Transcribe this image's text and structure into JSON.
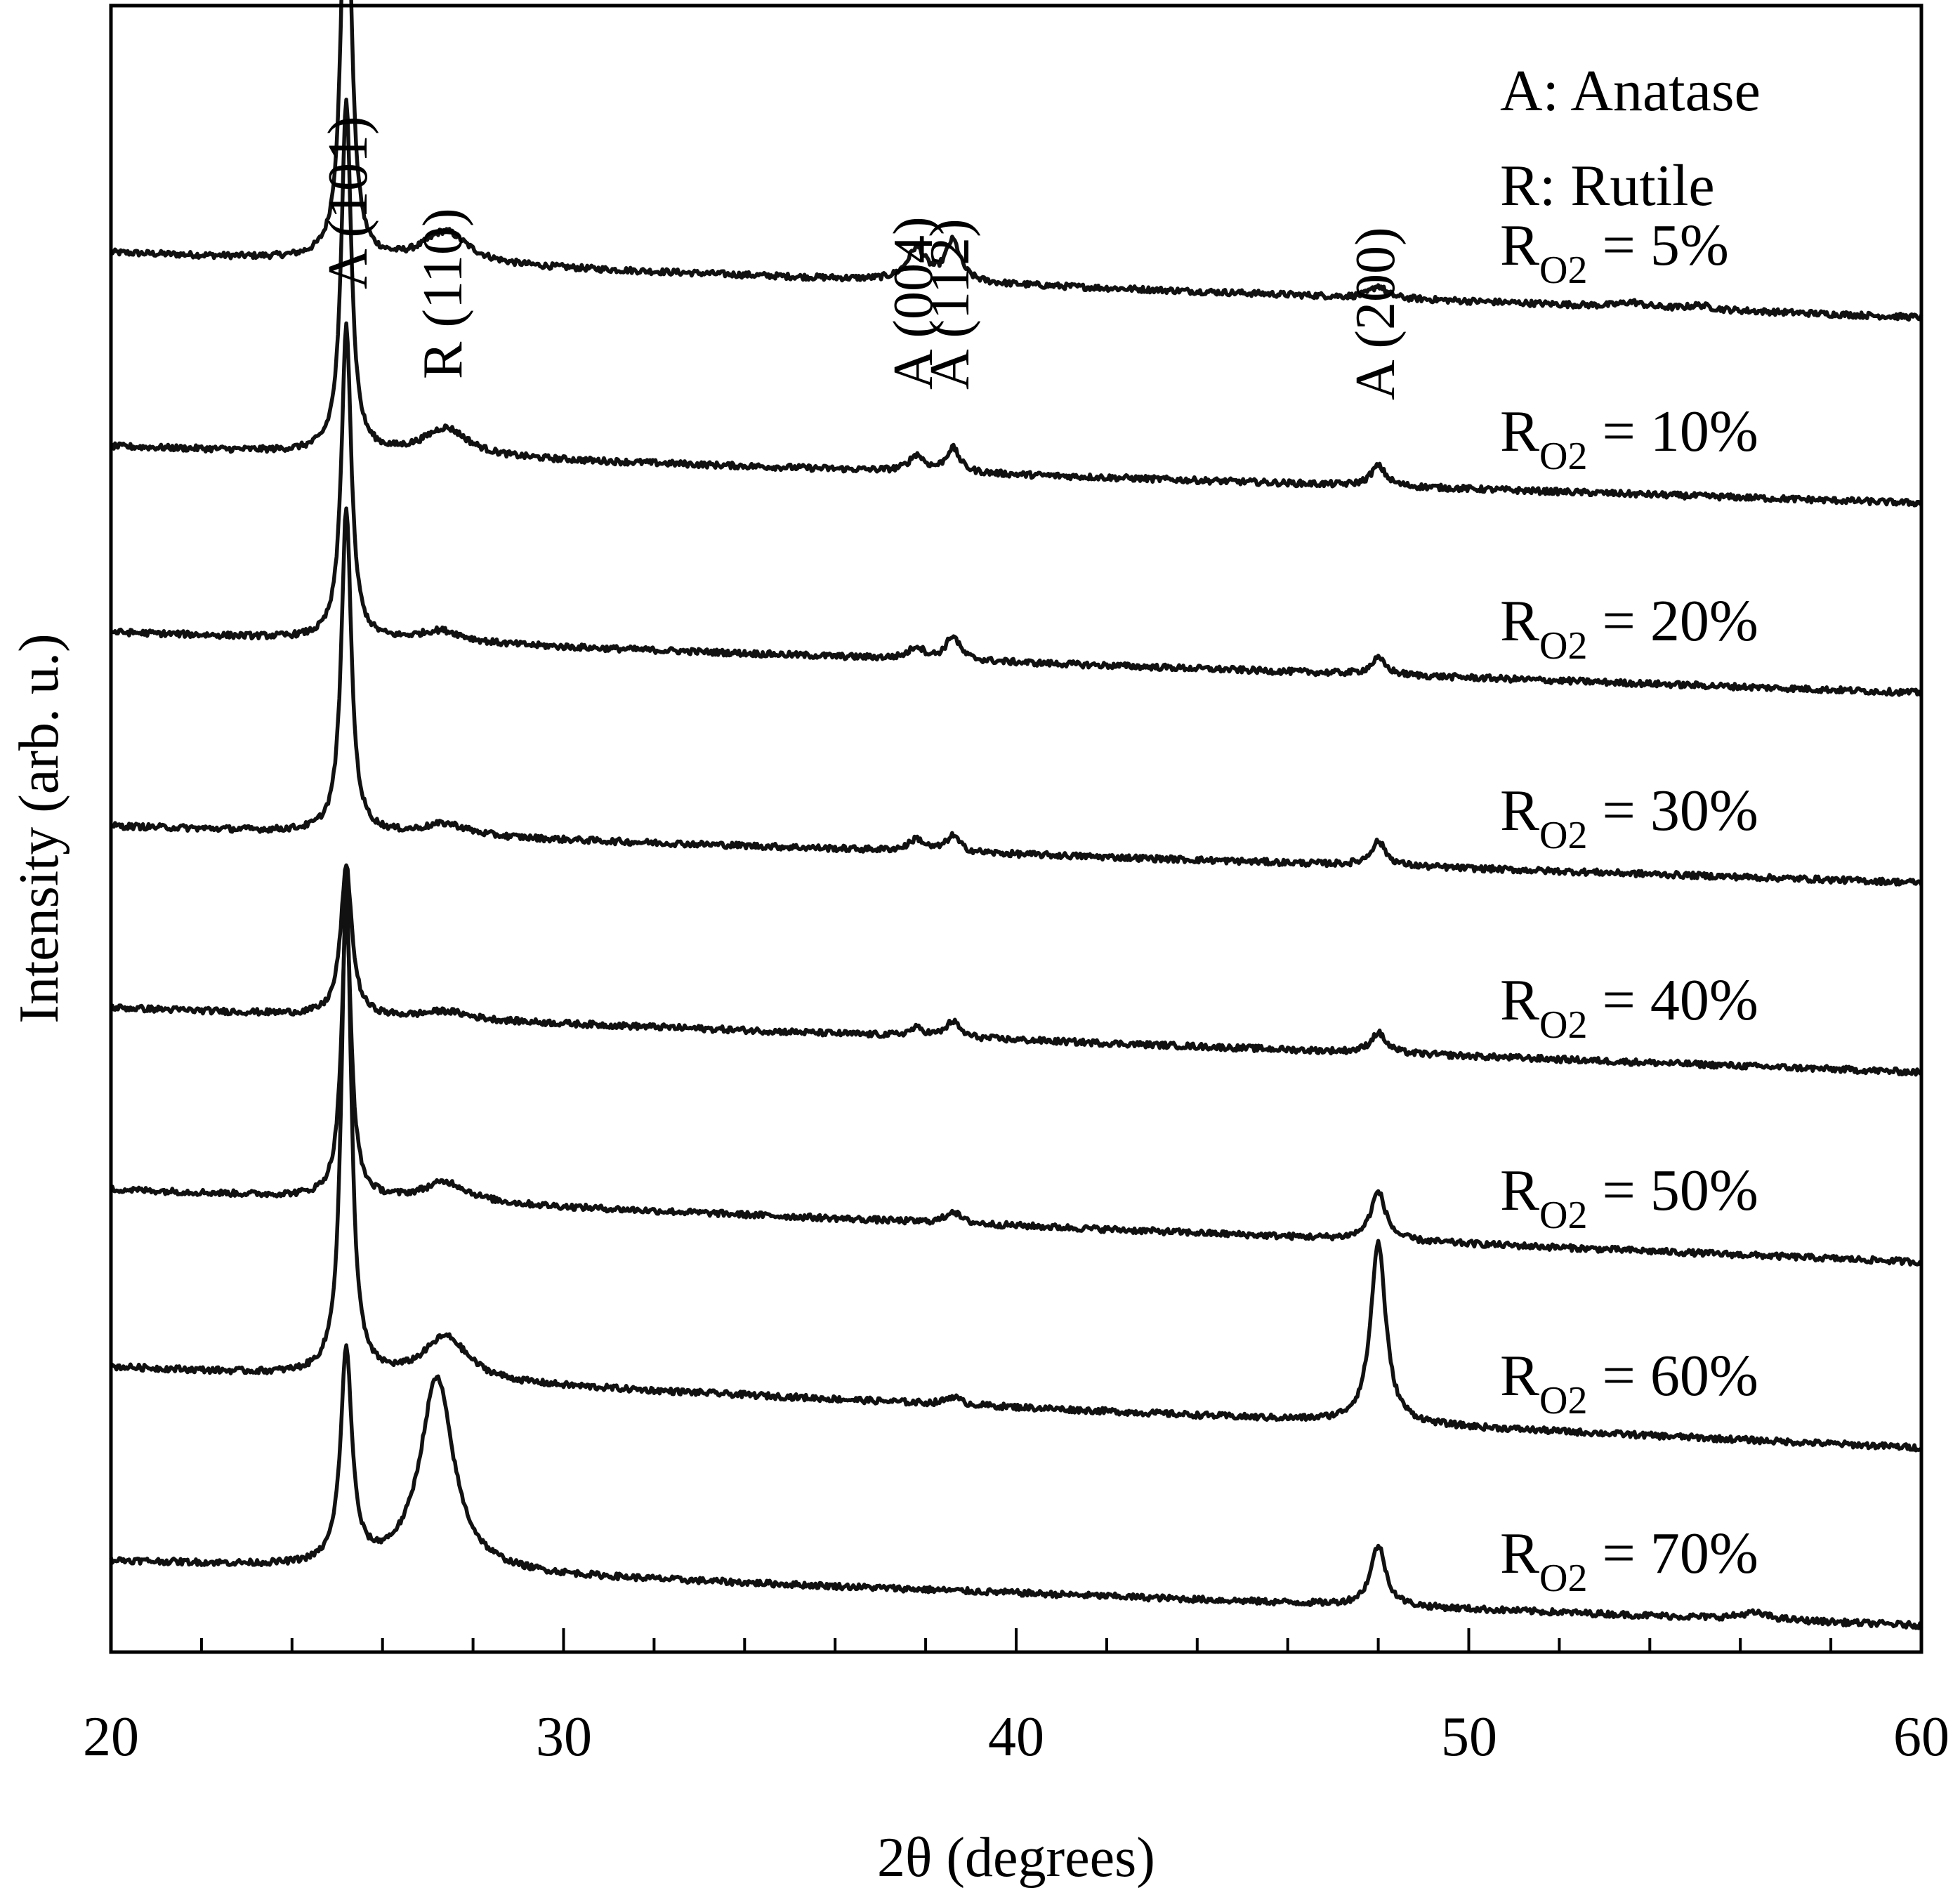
{
  "chart_data": {
    "type": "line",
    "xlabel": "2θ (degrees)",
    "ylabel": "Intensity (arb. u.)",
    "xlim": [
      20,
      60
    ],
    "x_ticks": [
      20,
      30,
      40,
      50,
      60
    ],
    "x_tick_labels": [
      "20",
      "30",
      "40",
      "50",
      "60"
    ],
    "minor_tick_step": 2,
    "y_scale": "arbitrary, vertically offset stack",
    "legend": {
      "A": "A: Anatase",
      "R": "R: Rutile"
    },
    "peak_labels": [
      {
        "text": "A (101)",
        "x": 25.3
      },
      {
        "text": "R (110)",
        "x": 27.4
      },
      {
        "text": "A (004)",
        "x": 37.8
      },
      {
        "text": "A (112)",
        "x": 38.6
      },
      {
        "text": "A (200)",
        "x": 48.0
      }
    ],
    "series": [
      {
        "name": "RO2 = 5%",
        "label_main": "R",
        "label_sub": "O2",
        "label_rest": " = 5%",
        "baseline": [
          13.2,
          12.4
        ],
        "peaks": [
          [
            25.2,
            5.4,
            0.13
          ],
          [
            27.4,
            0.4,
            0.6
          ],
          [
            37.8,
            0.4,
            0.25
          ],
          [
            38.6,
            0.5,
            0.2
          ],
          [
            48.0,
            0.15,
            0.2
          ],
          [
            53.6,
            0.06,
            0.3
          ],
          [
            55.1,
            0.05,
            0.3
          ]
        ]
      },
      {
        "name": "RO2 = 10%",
        "label_main": "R",
        "label_sub": "O2",
        "label_rest": " = 10%",
        "baseline": [
          10.8,
          10.1
        ],
        "peaks": [
          [
            25.2,
            4.4,
            0.13
          ],
          [
            27.4,
            0.35,
            0.6
          ],
          [
            37.8,
            0.2,
            0.2
          ],
          [
            38.6,
            0.3,
            0.18
          ],
          [
            48.0,
            0.25,
            0.2
          ]
        ]
      },
      {
        "name": "RO2 = 20%",
        "label_main": "R",
        "label_sub": "O2",
        "label_rest": " = 20%",
        "baseline": [
          8.5,
          7.75
        ],
        "peaks": [
          [
            25.2,
            3.9,
            0.13
          ],
          [
            27.3,
            0.15,
            0.6
          ],
          [
            37.8,
            0.15,
            0.2
          ],
          [
            38.6,
            0.3,
            0.18
          ],
          [
            48.0,
            0.2,
            0.2
          ]
        ]
      },
      {
        "name": "RO2 = 30%",
        "label_main": "R",
        "label_sub": "O2",
        "label_rest": " = 30%",
        "baseline": [
          6.1,
          5.4
        ],
        "peaks": [
          [
            25.2,
            4.05,
            0.13
          ],
          [
            27.4,
            0.15,
            0.6
          ],
          [
            37.8,
            0.15,
            0.2
          ],
          [
            38.6,
            0.2,
            0.18
          ],
          [
            48.0,
            0.3,
            0.2
          ]
        ]
      },
      {
        "name": "RO2 = 40%",
        "label_main": "R",
        "label_sub": "O2",
        "label_rest": " = 40%",
        "baseline": [
          3.85,
          3.05
        ],
        "peaks": [
          [
            25.2,
            1.85,
            0.15
          ],
          [
            27.4,
            0.1,
            0.6
          ],
          [
            37.8,
            0.1,
            0.2
          ],
          [
            38.6,
            0.2,
            0.18
          ],
          [
            48.0,
            0.25,
            0.2
          ]
        ]
      },
      {
        "name": "RO2 = 50%",
        "label_main": "R",
        "label_sub": "O2",
        "label_rest": " = 50%",
        "baseline": [
          1.6,
          0.7
        ],
        "peaks": [
          [
            25.2,
            3.5,
            0.13
          ],
          [
            27.4,
            0.25,
            0.6
          ],
          [
            38.6,
            0.15,
            0.18
          ],
          [
            48.0,
            0.6,
            0.2
          ]
        ]
      },
      {
        "name": "RO2 = 60%",
        "label_main": "R",
        "label_sub": "O2",
        "label_rest": " = 60%",
        "baseline": [
          -0.6,
          -1.6
        ],
        "peaks": [
          [
            25.2,
            6.1,
            0.13
          ],
          [
            27.4,
            0.55,
            0.6
          ],
          [
            38.6,
            0.1,
            0.18
          ],
          [
            48.0,
            2.25,
            0.2
          ]
        ]
      },
      {
        "name": "RO2 = 70%",
        "label_main": "R",
        "label_sub": "O2",
        "label_rest": " = 70%",
        "baseline": [
          -3.0,
          -3.8
        ],
        "peaks": [
          [
            25.2,
            2.65,
            0.15
          ],
          [
            27.2,
            2.4,
            0.45
          ],
          [
            48.0,
            0.75,
            0.2
          ],
          [
            56.3,
            0.08,
            0.4
          ]
        ]
      }
    ]
  }
}
